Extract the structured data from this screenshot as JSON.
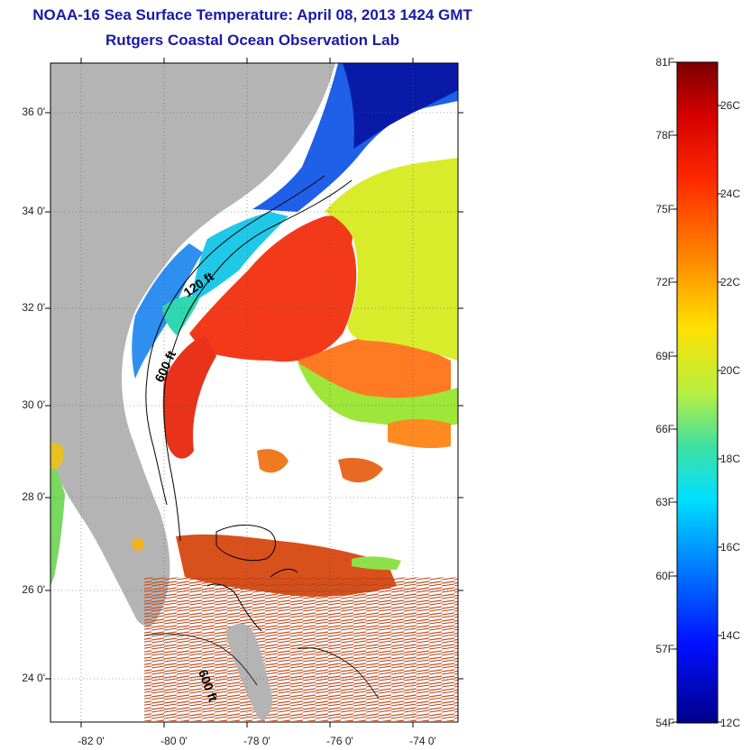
{
  "title": {
    "line1": "NOAA-16 Sea Surface Temperature:  April 08, 2013 1424 GMT",
    "line2": "Rutgers Coastal Ocean Observation Lab"
  },
  "map": {
    "lat_ticks": [
      "36 0'",
      "34 0'",
      "32 0'",
      "30 0'",
      "28 0'",
      "26 0'",
      "24 0'"
    ],
    "lon_ticks": [
      "-82 0'",
      "-80 0'",
      "-78 0'",
      "-76 0'",
      "-74 0'"
    ],
    "contour_labels": [
      "120 ft",
      "600 ft",
      "600 ft"
    ],
    "land_color": "#b4b4b4",
    "cloud_color": "#ffffff"
  },
  "colorbar": {
    "fahrenheit": [
      "81F",
      "78F",
      "75F",
      "72F",
      "69F",
      "66F",
      "63F",
      "60F",
      "57F",
      "54F"
    ],
    "celsius": [
      "26C",
      "24C",
      "22C",
      "20C",
      "18C",
      "16C",
      "14C",
      "12C"
    ],
    "colors": [
      "#7a0000",
      "#d40000",
      "#ff3000",
      "#ff8a00",
      "#ffe000",
      "#b8f040",
      "#40e0a0",
      "#00e0ff",
      "#0080ff",
      "#0010ff",
      "#00008a"
    ]
  }
}
